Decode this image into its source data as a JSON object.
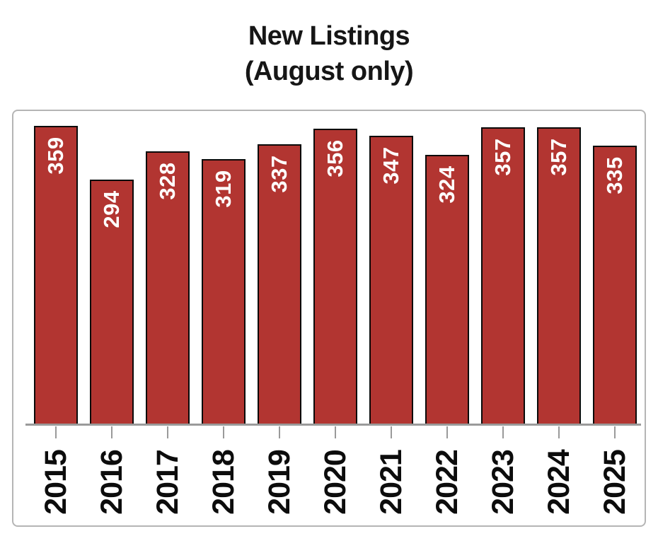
{
  "title": {
    "line1": "New Listings",
    "line2": "(August only)"
  },
  "chart_data": {
    "type": "bar",
    "title": "New Listings (August only)",
    "categories": [
      "2015",
      "2016",
      "2017",
      "2018",
      "2019",
      "2020",
      "2021",
      "2022",
      "2023",
      "2024",
      "2025"
    ],
    "values": [
      359,
      294,
      328,
      319,
      337,
      356,
      347,
      324,
      357,
      357,
      335
    ],
    "xlabel": "",
    "ylabel": "",
    "ylim": [
      0,
      377
    ],
    "grid": false,
    "legend": false,
    "data_labels": "inside-end, rotated vertical, white",
    "bar_color": "#b23531",
    "bar_border_color": "#0a0a0a",
    "value_label_color": "#ffffff",
    "axis_color": "#9a9a9a",
    "tick_label_color": "#0c0c0c",
    "frame_border_color": "#b5b5b5"
  }
}
